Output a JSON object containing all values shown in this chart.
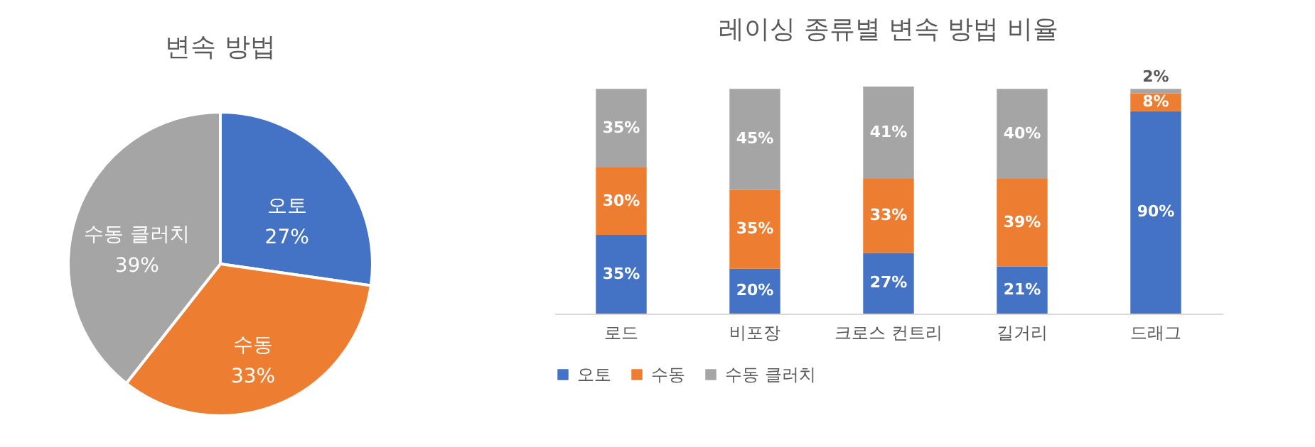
{
  "chart_data": [
    {
      "type": "pie",
      "title": "변속 방법",
      "categories": [
        "오토",
        "수동",
        "수동 클러치"
      ],
      "values": [
        27,
        33,
        39
      ],
      "value_labels": [
        "27%",
        "33%",
        "39%"
      ],
      "colors": [
        "#4472c4",
        "#ed7d31",
        "#a5a5a5"
      ],
      "legend": false
    },
    {
      "type": "bar",
      "title": "레이싱 종류별 변속 방법 비율",
      "categories": [
        "로드",
        "비포장",
        "크로스 컨트리",
        "길거리",
        "드래그"
      ],
      "stacked": true,
      "legend": "bottom",
      "tick_labels": "x",
      "ylim": [
        0,
        101
      ],
      "series": [
        {
          "name": "오토",
          "color": "#4472c4",
          "values": [
            35,
            20,
            27,
            21,
            90
          ],
          "value_labels": [
            "35%",
            "20%",
            "27%",
            "21%",
            "90%"
          ]
        },
        {
          "name": "수동",
          "color": "#ed7d31",
          "values": [
            30,
            35,
            33,
            39,
            8
          ],
          "value_labels": [
            "30%",
            "35%",
            "33%",
            "39%",
            "8%"
          ]
        },
        {
          "name": "수동 클러치",
          "color": "#a5a5a5",
          "values": [
            35,
            45,
            41,
            40,
            2
          ],
          "value_labels": [
            "35%",
            "45%",
            "41%",
            "40%",
            "2%"
          ]
        }
      ]
    }
  ]
}
